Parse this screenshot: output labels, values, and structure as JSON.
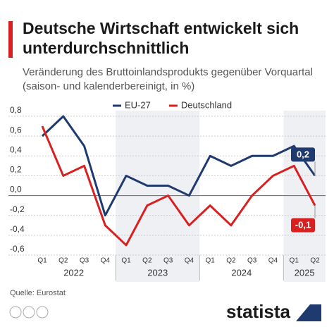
{
  "chart_data": {
    "type": "line",
    "title": "Deutsche Wirtschaft entwickelt sich unterdurchschnittlich",
    "subtitle": "Veränderung des Bruttoinlandsprodukts gegenüber Vorquartal (saison- und kalenderbereinigt, in %)",
    "categories": [
      "Q1",
      "Q2",
      "Q3",
      "Q4",
      "Q1",
      "Q2",
      "Q3",
      "Q4",
      "Q1",
      "Q2",
      "Q3",
      "Q4",
      "Q1",
      "Q2"
    ],
    "years": [
      "2022",
      "2023",
      "2024",
      "2025"
    ],
    "series": [
      {
        "name": "EU-27",
        "color": "#1f3a6e",
        "values": [
          0.6,
          0.8,
          0.5,
          -0.2,
          0.2,
          0.1,
          0.1,
          0.0,
          0.4,
          0.3,
          0.4,
          0.4,
          0.5,
          0.2
        ],
        "value_labels": [
          null,
          null,
          null,
          null,
          null,
          null,
          null,
          null,
          null,
          null,
          null,
          null,
          null,
          "0,2"
        ]
      },
      {
        "name": "Deutschland",
        "color": "#d7201f",
        "values": [
          0.7,
          0.2,
          0.3,
          -0.3,
          -0.5,
          -0.1,
          0.0,
          -0.3,
          -0.1,
          -0.3,
          0.0,
          0.2,
          0.3,
          -0.1
        ],
        "value_labels": [
          null,
          null,
          null,
          null,
          null,
          null,
          null,
          null,
          null,
          null,
          null,
          null,
          null,
          "-0,1"
        ]
      }
    ],
    "ylim": [
      -0.6,
      0.8
    ],
    "yticks": [
      {
        "value": -0.6,
        "label": "-0,6"
      },
      {
        "value": -0.4,
        "label": "-0,4"
      },
      {
        "value": -0.2,
        "label": "-0,2"
      },
      {
        "value": 0,
        "label": "0,0"
      },
      {
        "value": 0.2,
        "label": "0,2"
      },
      {
        "value": 0.4,
        "label": "0,4"
      },
      {
        "value": 0.6,
        "label": "0,6"
      },
      {
        "value": 0.8,
        "label": "0,8"
      }
    ],
    "grid": true,
    "source": "Quelle: Eurostat",
    "brand": "statista"
  }
}
